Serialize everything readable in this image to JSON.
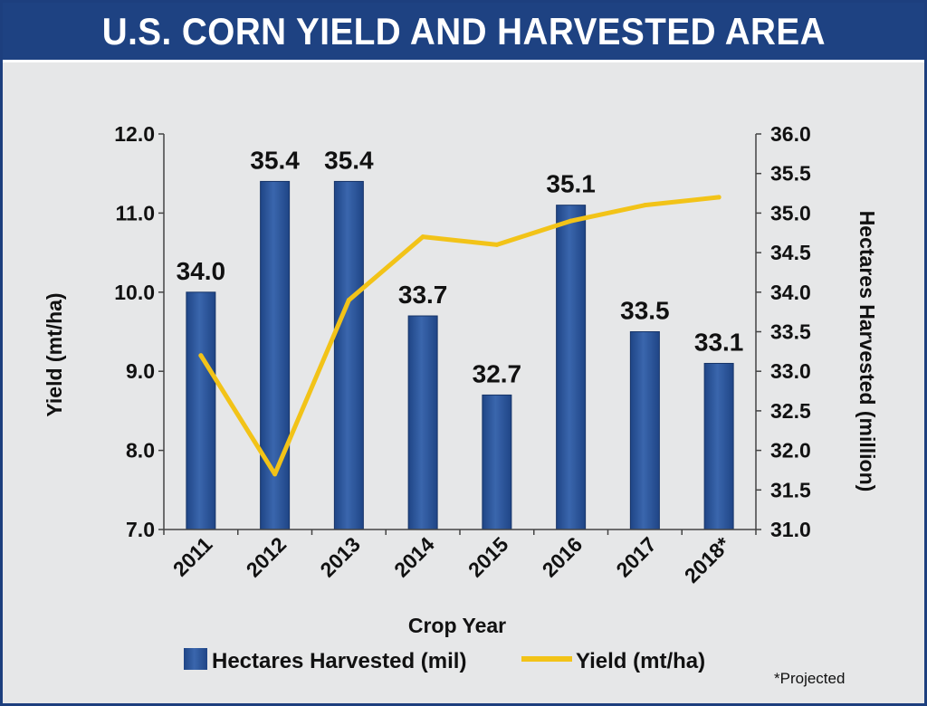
{
  "title": "U.S. CORN YIELD AND HARVESTED AREA",
  "footnote": "*Projected",
  "colors": {
    "title_bg": "#1e4282",
    "bar": "#1f4586",
    "bar_light": "#3a66ad",
    "line": "#f2c318",
    "background": "#e6e7e8"
  },
  "chart_data": {
    "type": "bar",
    "categories": [
      "2011",
      "2012",
      "2013",
      "2014",
      "2015",
      "2016",
      "2017",
      "2018*"
    ],
    "xlabel": "Crop Year",
    "ylabel_left": "Yield (mt/ha)",
    "ylabel_right": "Hectares Harvested (million)",
    "ylim_left": [
      7.0,
      12.0
    ],
    "ylim_right": [
      31.0,
      36.0
    ],
    "yticks_left": [
      "7.0",
      "8.0",
      "9.0",
      "10.0",
      "11.0",
      "12.0"
    ],
    "yticks_right": [
      "31.0",
      "31.5",
      "32.0",
      "32.5",
      "33.0",
      "33.5",
      "34.0",
      "34.5",
      "35.0",
      "35.5",
      "36.0"
    ],
    "grid": false,
    "legend_position": "bottom",
    "series": [
      {
        "name": "Hectares Harvested (mil)",
        "type": "bar",
        "axis": "right",
        "values": [
          34.0,
          35.4,
          35.4,
          33.7,
          32.7,
          35.1,
          33.5,
          33.1
        ],
        "labels": [
          "34.0",
          "35.4",
          "35.4",
          "33.7",
          "32.7",
          "35.1",
          "33.5",
          "33.1"
        ]
      },
      {
        "name": "Yield (mt/ha)",
        "type": "line",
        "axis": "left",
        "values": [
          9.2,
          7.7,
          9.9,
          10.7,
          10.6,
          10.9,
          11.1,
          11.2
        ]
      }
    ]
  }
}
